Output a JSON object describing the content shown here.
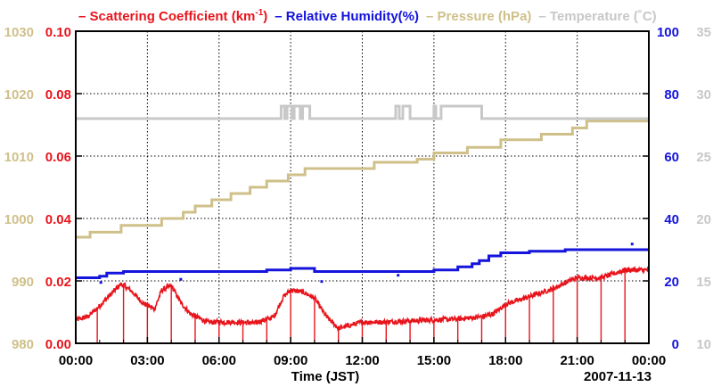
{
  "chart_data": {
    "type": "line",
    "date_label": "2007-11-13",
    "xlabel": "Time (JST)",
    "xlim": [
      0,
      24
    ],
    "x_ticks": [
      0,
      3,
      6,
      9,
      12,
      15,
      18,
      21,
      24
    ],
    "x_tick_labels": [
      "00:00",
      "03:00",
      "06:00",
      "09:00",
      "12:00",
      "15:00",
      "18:00",
      "21:00",
      "00:00"
    ],
    "legend": [
      {
        "dash": "–",
        "text": "Scattering Coefficient (km",
        "sup": "-1",
        "close": ")",
        "color": "#e8141c"
      },
      {
        "dash": "–",
        "text": "Relative Humidity(%)",
        "sup": "",
        "close": "",
        "color": "#1414dc"
      },
      {
        "dash": "–",
        "text": "Pressure (hPa)",
        "sup": "",
        "close": "",
        "color": "#cfc08a"
      },
      {
        "dash": "–",
        "text": "Temperature (˚C)",
        "sup": "",
        "close": "",
        "color": "#c8c8c8"
      }
    ],
    "axes": {
      "pressure": {
        "min": 980,
        "max": 1030,
        "ticks": [
          "980",
          "990",
          "1000",
          "1010",
          "1020",
          "1030"
        ],
        "color": "#cfc08a"
      },
      "scattering": {
        "min": 0,
        "max": 0.1,
        "ticks": [
          "0.00",
          "0.02",
          "0.04",
          "0.06",
          "0.08",
          "0.10"
        ],
        "color": "#e8141c"
      },
      "humidity": {
        "min": 0,
        "max": 100,
        "ticks": [
          "0",
          "20",
          "40",
          "60",
          "80",
          "100"
        ],
        "color": "#1414dc"
      },
      "temperature": {
        "min": 10,
        "max": 35,
        "ticks": [
          "10",
          "15",
          "20",
          "25",
          "30",
          "35"
        ],
        "color": "#c8c8c8"
      }
    },
    "series": [
      {
        "name": "Pressure (hPa)",
        "axis": "pressure",
        "color": "#cfc08a",
        "style": "step",
        "points": [
          [
            0,
            997
          ],
          [
            0.6,
            997.8
          ],
          [
            1.9,
            998.9
          ],
          [
            3.6,
            1000
          ],
          [
            4.5,
            1001
          ],
          [
            5.0,
            1002
          ],
          [
            5.7,
            1003
          ],
          [
            6.5,
            1004
          ],
          [
            7.3,
            1005
          ],
          [
            8.0,
            1006
          ],
          [
            8.9,
            1007
          ],
          [
            9.6,
            1008
          ],
          [
            10.6,
            1008
          ],
          [
            12.5,
            1009
          ],
          [
            14.3,
            1009.5
          ],
          [
            15.0,
            1010.5
          ],
          [
            16.4,
            1011.4
          ],
          [
            17.8,
            1012.6
          ],
          [
            19.5,
            1013.5
          ],
          [
            20.8,
            1014.5
          ],
          [
            21.4,
            1015.6
          ],
          [
            24,
            1015.6
          ]
        ]
      },
      {
        "name": "Temperature (˚C)",
        "axis": "temperature",
        "color": "#c8c8c8",
        "style": "step",
        "points": [
          [
            0,
            28
          ],
          [
            8.6,
            28
          ],
          [
            8.6,
            29
          ],
          [
            8.75,
            29
          ],
          [
            8.75,
            28
          ],
          [
            8.85,
            28
          ],
          [
            8.85,
            29
          ],
          [
            9.05,
            29
          ],
          [
            9.05,
            28
          ],
          [
            9.15,
            28
          ],
          [
            9.15,
            29
          ],
          [
            9.4,
            29
          ],
          [
            9.4,
            28
          ],
          [
            9.5,
            28
          ],
          [
            9.5,
            29
          ],
          [
            9.8,
            29
          ],
          [
            9.8,
            28
          ],
          [
            13.4,
            28
          ],
          [
            13.4,
            29
          ],
          [
            13.55,
            29
          ],
          [
            13.55,
            28
          ],
          [
            13.7,
            28
          ],
          [
            13.7,
            29
          ],
          [
            14.0,
            29
          ],
          [
            14.0,
            28
          ],
          [
            15.0,
            28
          ],
          [
            15.0,
            29
          ],
          [
            15.08,
            29
          ],
          [
            15.08,
            28
          ],
          [
            15.3,
            28
          ],
          [
            15.3,
            29
          ],
          [
            17.0,
            29
          ],
          [
            17.0,
            28
          ],
          [
            24,
            28
          ]
        ]
      },
      {
        "name": "Relative Humidity(%)",
        "axis": "humidity",
        "color": "#1414dc",
        "style": "step",
        "points": [
          [
            0,
            21
          ],
          [
            1.0,
            21.5
          ],
          [
            1.3,
            22.5
          ],
          [
            2.0,
            23
          ],
          [
            6.0,
            23
          ],
          [
            8.0,
            23.5
          ],
          [
            9.0,
            24
          ],
          [
            10.0,
            23
          ],
          [
            12.0,
            23
          ],
          [
            14.0,
            23
          ],
          [
            15.0,
            23.5
          ],
          [
            16.0,
            24.5
          ],
          [
            16.6,
            25.5
          ],
          [
            16.9,
            26.5
          ],
          [
            17.3,
            28
          ],
          [
            17.8,
            29
          ],
          [
            19.0,
            29.5
          ],
          [
            20.5,
            30
          ],
          [
            24,
            30
          ]
        ],
        "outliers": [
          [
            1.05,
            19.5
          ],
          [
            4.4,
            20.5
          ],
          [
            10.3,
            19.8
          ],
          [
            13.5,
            21.8
          ],
          [
            23.3,
            31.8
          ]
        ]
      },
      {
        "name": "Scattering Coefficient (km-1)",
        "axis": "scattering",
        "color": "#e8141c",
        "style": "noisy-line",
        "points": [
          [
            0,
            0.0075
          ],
          [
            0.5,
            0.0085
          ],
          [
            1.0,
            0.012
          ],
          [
            1.5,
            0.016
          ],
          [
            1.9,
            0.019
          ],
          [
            2.3,
            0.017
          ],
          [
            2.8,
            0.013
          ],
          [
            3.3,
            0.011
          ],
          [
            3.6,
            0.017
          ],
          [
            4.0,
            0.0185
          ],
          [
            4.4,
            0.013
          ],
          [
            4.8,
            0.0095
          ],
          [
            5.5,
            0.0068
          ],
          [
            6.5,
            0.0068
          ],
          [
            7.5,
            0.0065
          ],
          [
            8.3,
            0.0085
          ],
          [
            8.7,
            0.015
          ],
          [
            9.0,
            0.017
          ],
          [
            9.5,
            0.0165
          ],
          [
            10.0,
            0.0145
          ],
          [
            10.5,
            0.0085
          ],
          [
            11.0,
            0.0048
          ],
          [
            12.0,
            0.0068
          ],
          [
            13.0,
            0.0068
          ],
          [
            14.0,
            0.0072
          ],
          [
            15.0,
            0.0075
          ],
          [
            16.0,
            0.0078
          ],
          [
            17.0,
            0.0085
          ],
          [
            17.5,
            0.0095
          ],
          [
            18.0,
            0.0125
          ],
          [
            19.0,
            0.015
          ],
          [
            20.0,
            0.0175
          ],
          [
            20.5,
            0.0195
          ],
          [
            21.0,
            0.021
          ],
          [
            22.0,
            0.021
          ],
          [
            23.0,
            0.0235
          ],
          [
            24,
            0.0235
          ]
        ],
        "spikes": [
          0.9,
          2.0,
          3.0,
          4.0,
          5.0,
          6.0,
          7.0,
          8.0,
          9.0,
          10.0,
          11.0,
          12.0,
          13.0,
          14.0,
          15.0,
          16.0,
          17.0,
          18.0,
          19.0,
          20.0,
          21.0,
          22.0,
          23.0
        ]
      }
    ]
  }
}
